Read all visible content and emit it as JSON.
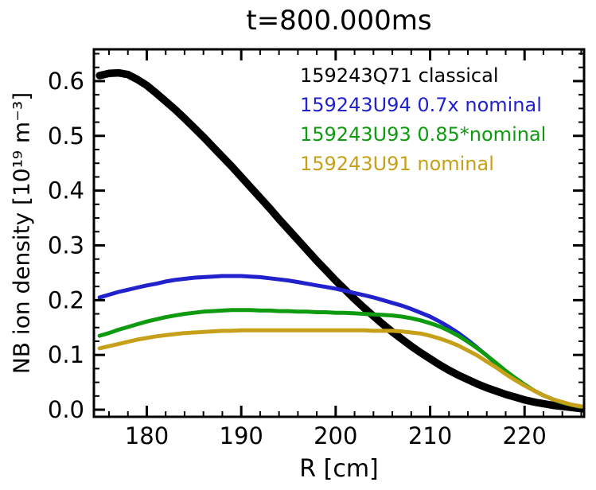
{
  "chart_data": {
    "type": "line",
    "title": "t=800.000ms",
    "xlabel": "R [cm]",
    "ylabel": "NB ion density [10¹⁹ m⁻³]",
    "xlim": [
      174.4,
      226.3
    ],
    "ylim": [
      -0.013,
      0.658
    ],
    "grid": false,
    "legend_position": "top-right-inside",
    "x_ticks": {
      "major": [
        180,
        190,
        200,
        210,
        220
      ],
      "labels": [
        "180",
        "190",
        "200",
        "210",
        "220"
      ],
      "minor_step": 2
    },
    "y_ticks": {
      "major": [
        0.0,
        0.1,
        0.2,
        0.3,
        0.4,
        0.5,
        0.6
      ],
      "labels": [
        "0.0",
        "0.1",
        "0.2",
        "0.3",
        "0.4",
        "0.5",
        "0.6"
      ],
      "minor_step": 0.025
    },
    "x": [
      175,
      176,
      177,
      178,
      179,
      180,
      181,
      182,
      183,
      184,
      185,
      186,
      187,
      188,
      189,
      190,
      191,
      192,
      193,
      194,
      195,
      196,
      197,
      198,
      199,
      200,
      201,
      202,
      203,
      204,
      205,
      206,
      207,
      208,
      209,
      210,
      211,
      212,
      213,
      214,
      215,
      216,
      217,
      218,
      219,
      220,
      221,
      222,
      223,
      224,
      225,
      226,
      227
    ],
    "series": [
      {
        "name": "159243Q71",
        "legend": "159243Q71 classical",
        "color": "#000000",
        "width": 9.5,
        "values": [
          0.61,
          0.614,
          0.615,
          0.612,
          0.603,
          0.592,
          0.578,
          0.563,
          0.548,
          0.532,
          0.515,
          0.498,
          0.48,
          0.462,
          0.444,
          0.425,
          0.406,
          0.387,
          0.368,
          0.348,
          0.329,
          0.31,
          0.291,
          0.272,
          0.254,
          0.236,
          0.219,
          0.202,
          0.186,
          0.171,
          0.156,
          0.142,
          0.129,
          0.116,
          0.104,
          0.093,
          0.082,
          0.072,
          0.063,
          0.055,
          0.047,
          0.04,
          0.034,
          0.028,
          0.023,
          0.018,
          0.014,
          0.011,
          0.008,
          0.006,
          0.004,
          0.002,
          0.001
        ]
      },
      {
        "name": "159243U94",
        "legend": "159243U94 0.7x nominal",
        "color": "#2222cd",
        "width": 5,
        "values": [
          0.205,
          0.21,
          0.215,
          0.219,
          0.223,
          0.227,
          0.23,
          0.234,
          0.237,
          0.239,
          0.241,
          0.242,
          0.243,
          0.244,
          0.244,
          0.244,
          0.243,
          0.242,
          0.24,
          0.238,
          0.236,
          0.233,
          0.23,
          0.227,
          0.224,
          0.221,
          0.217,
          0.213,
          0.209,
          0.205,
          0.2,
          0.195,
          0.19,
          0.184,
          0.177,
          0.17,
          0.161,
          0.151,
          0.14,
          0.127,
          0.113,
          0.099,
          0.084,
          0.07,
          0.057,
          0.045,
          0.035,
          0.026,
          0.019,
          0.013,
          0.009,
          0.005,
          0.003
        ]
      },
      {
        "name": "159243U93",
        "legend": "159243U93 0.85*nominal",
        "color": "#0f9b0f",
        "width": 5,
        "values": [
          0.135,
          0.14,
          0.146,
          0.151,
          0.156,
          0.161,
          0.165,
          0.169,
          0.172,
          0.175,
          0.177,
          0.179,
          0.18,
          0.181,
          0.182,
          0.182,
          0.182,
          0.181,
          0.181,
          0.18,
          0.18,
          0.179,
          0.179,
          0.178,
          0.178,
          0.177,
          0.177,
          0.176,
          0.175,
          0.174,
          0.173,
          0.172,
          0.17,
          0.167,
          0.163,
          0.158,
          0.152,
          0.144,
          0.135,
          0.124,
          0.112,
          0.099,
          0.085,
          0.071,
          0.058,
          0.046,
          0.035,
          0.026,
          0.019,
          0.013,
          0.009,
          0.005,
          0.003
        ]
      },
      {
        "name": "159243U91",
        "legend": "159243U91 nominal",
        "color": "#c6a019",
        "width": 5,
        "values": [
          0.112,
          0.116,
          0.12,
          0.124,
          0.128,
          0.131,
          0.134,
          0.136,
          0.138,
          0.14,
          0.141,
          0.142,
          0.143,
          0.144,
          0.144,
          0.145,
          0.145,
          0.145,
          0.145,
          0.145,
          0.145,
          0.145,
          0.145,
          0.145,
          0.145,
          0.145,
          0.145,
          0.145,
          0.145,
          0.144,
          0.144,
          0.144,
          0.143,
          0.141,
          0.139,
          0.135,
          0.13,
          0.124,
          0.117,
          0.108,
          0.099,
          0.088,
          0.077,
          0.065,
          0.054,
          0.044,
          0.035,
          0.026,
          0.019,
          0.014,
          0.009,
          0.006,
          0.003
        ]
      }
    ]
  }
}
